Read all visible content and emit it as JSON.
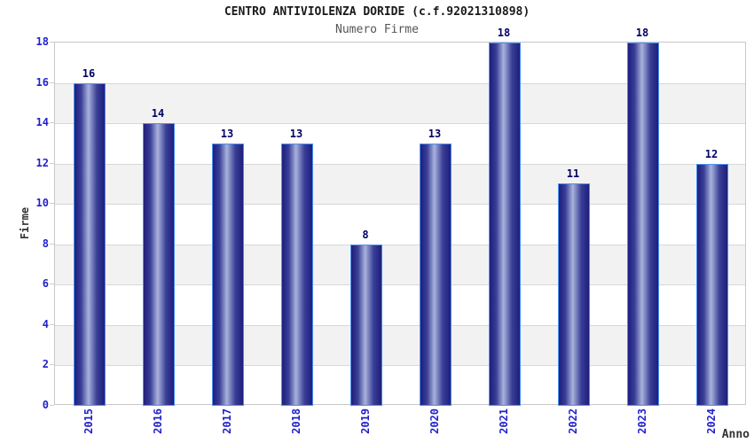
{
  "chart_data": {
    "type": "bar",
    "title": "CENTRO ANTIVIOLENZA DORIDE (c.f.92021310898)",
    "subtitle": "Numero Firme",
    "xlabel": "Anno",
    "ylabel": "Firme",
    "categories": [
      "2015",
      "2016",
      "2017",
      "2018",
      "2019",
      "2020",
      "2021",
      "2022",
      "2023",
      "2024"
    ],
    "values": [
      16,
      14,
      13,
      13,
      8,
      13,
      18,
      11,
      18,
      12
    ],
    "ylim": [
      0,
      18
    ],
    "ytick_step": 2,
    "legend": "none",
    "grid": "horizontal-bands-alternating",
    "bar_value_labels_shown": true,
    "colors": {
      "bar_dark": "#1e1e7d",
      "bar_highlight": "#a9b2dc",
      "bar_outline": "#4a90f2",
      "tick_label": "#2222cc",
      "value_label": "#000066",
      "band": "#f2f2f2",
      "gridline": "#d8d8d8",
      "plot_border": "#c8c8c8",
      "title": "#1a1a1a",
      "subtitle": "#555555",
      "axis_title": "#333333",
      "background": "#ffffff"
    }
  }
}
